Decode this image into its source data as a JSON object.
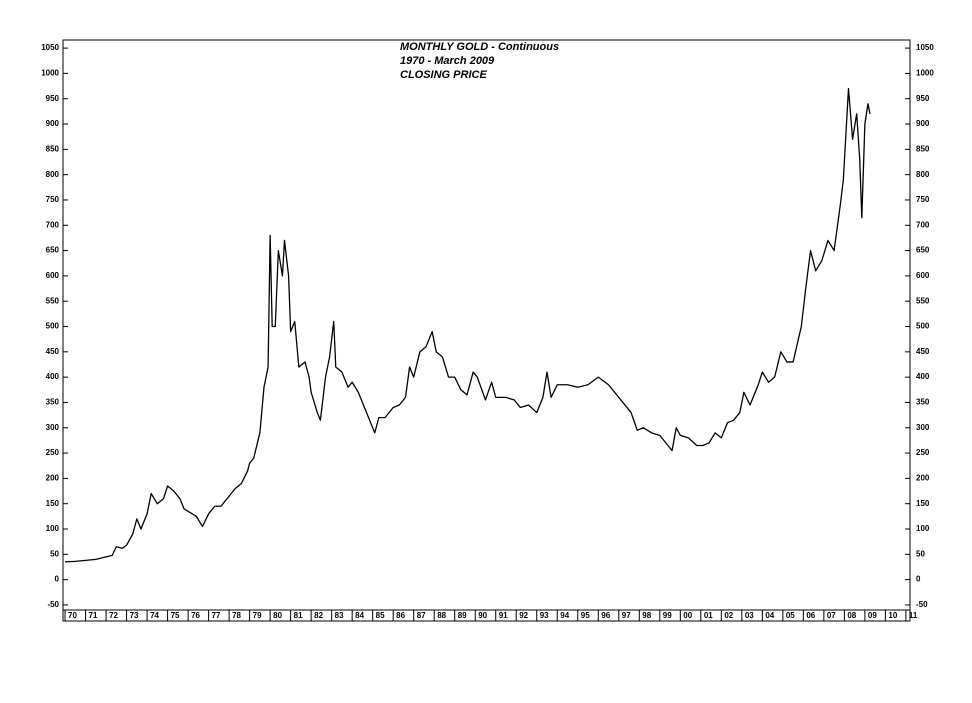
{
  "chart_data": {
    "type": "line",
    "title_lines": [
      "MONTHLY GOLD - Continuous",
      "1970 - March 2009",
      "CLOSING PRICE"
    ],
    "x": [
      1970,
      1970.5,
      1971,
      1971.5,
      1972,
      1972.3,
      1972.5,
      1972.8,
      1973,
      1973.3,
      1973.5,
      1973.7,
      1974,
      1974.2,
      1974.5,
      1974.8,
      1975,
      1975.3,
      1975.6,
      1975.8,
      1976,
      1976.4,
      1976.7,
      1977,
      1977.3,
      1977.6,
      1978,
      1978.3,
      1978.6,
      1978.9,
      1979,
      1979.2,
      1979.5,
      1979.7,
      1979.9,
      1980,
      1980.1,
      1980.25,
      1980.4,
      1980.6,
      1980.7,
      1980.9,
      1981,
      1981.2,
      1981.4,
      1981.7,
      1981.9,
      1982,
      1982.3,
      1982.45,
      1982.7,
      1982.9,
      1983.1,
      1983.2,
      1983.5,
      1983.8,
      1984,
      1984.3,
      1984.6,
      1984.9,
      1985.1,
      1985.3,
      1985.6,
      1986,
      1986.3,
      1986.6,
      1986.8,
      1987,
      1987.3,
      1987.6,
      1987.9,
      1988.1,
      1988.4,
      1988.7,
      1989,
      1989.3,
      1989.6,
      1989.9,
      1990.1,
      1990.5,
      1990.8,
      1991,
      1991.5,
      1991.9,
      1992.2,
      1992.6,
      1993,
      1993.3,
      1993.5,
      1993.7,
      1994,
      1994.5,
      1995,
      1995.5,
      1996,
      1996.5,
      1996.9,
      1997.2,
      1997.6,
      1997.9,
      1998.2,
      1998.6,
      1999,
      1999.4,
      1999.6,
      1999.8,
      2000,
      2000.4,
      2000.8,
      2001.1,
      2001.4,
      2001.7,
      2002,
      2002.3,
      2002.6,
      2002.9,
      2003.1,
      2003.4,
      2003.8,
      2004,
      2004.3,
      2004.6,
      2004.9,
      2005.2,
      2005.5,
      2005.9,
      2006.1,
      2006.35,
      2006.6,
      2006.9,
      2007.2,
      2007.5,
      2007.8,
      2007.95,
      2008.2,
      2008.4,
      2008.6,
      2008.75,
      2008.85,
      2009,
      2009.15,
      2009.25
    ],
    "values": [
      35,
      36,
      38,
      40,
      45,
      48,
      65,
      62,
      68,
      90,
      120,
      100,
      130,
      170,
      150,
      160,
      185,
      175,
      160,
      140,
      135,
      125,
      105,
      130,
      145,
      145,
      165,
      180,
      190,
      215,
      230,
      240,
      290,
      380,
      420,
      680,
      500,
      500,
      650,
      600,
      670,
      600,
      490,
      510,
      420,
      430,
      400,
      370,
      330,
      315,
      400,
      440,
      510,
      420,
      410,
      380,
      390,
      370,
      340,
      310,
      290,
      320,
      320,
      340,
      345,
      360,
      420,
      400,
      450,
      460,
      490,
      450,
      440,
      400,
      400,
      375,
      365,
      410,
      400,
      355,
      390,
      360,
      360,
      355,
      340,
      345,
      330,
      360,
      410,
      360,
      385,
      385,
      380,
      385,
      400,
      385,
      365,
      350,
      330,
      295,
      300,
      290,
      285,
      265,
      255,
      300,
      285,
      280,
      265,
      265,
      270,
      290,
      280,
      310,
      315,
      330,
      370,
      345,
      385,
      410,
      390,
      400,
      450,
      430,
      430,
      500,
      570,
      650,
      610,
      630,
      670,
      650,
      740,
      790,
      970,
      870,
      920,
      830,
      715,
      900,
      940,
      920
    ],
    "color": "#000000",
    "xlim": [
      1969.9,
      2011.2
    ],
    "xticks": [
      {
        "value": 1970,
        "label": "70"
      },
      {
        "value": 1971,
        "label": "71"
      },
      {
        "value": 1972,
        "label": "72"
      },
      {
        "value": 1973,
        "label": "73"
      },
      {
        "value": 1974,
        "label": "74"
      },
      {
        "value": 1975,
        "label": "75"
      },
      {
        "value": 1976,
        "label": "76"
      },
      {
        "value": 1977,
        "label": "77"
      },
      {
        "value": 1978,
        "label": "78"
      },
      {
        "value": 1979,
        "label": "79"
      },
      {
        "value": 1980,
        "label": "80"
      },
      {
        "value": 1981,
        "label": "81"
      },
      {
        "value": 1982,
        "label": "82"
      },
      {
        "value": 1983,
        "label": "83"
      },
      {
        "value": 1984,
        "label": "84"
      },
      {
        "value": 1985,
        "label": "85"
      },
      {
        "value": 1986,
        "label": "86"
      },
      {
        "value": 1987,
        "label": "87"
      },
      {
        "value": 1988,
        "label": "88"
      },
      {
        "value": 1989,
        "label": "89"
      },
      {
        "value": 1990,
        "label": "90"
      },
      {
        "value": 1991,
        "label": "91"
      },
      {
        "value": 1992,
        "label": "92"
      },
      {
        "value": 1993,
        "label": "93"
      },
      {
        "value": 1994,
        "label": "94"
      },
      {
        "value": 1995,
        "label": "95"
      },
      {
        "value": 1996,
        "label": "96"
      },
      {
        "value": 1997,
        "label": "97"
      },
      {
        "value": 1998,
        "label": "98"
      },
      {
        "value": 1999,
        "label": "99"
      },
      {
        "value": 2000,
        "label": "00"
      },
      {
        "value": 2001,
        "label": "01"
      },
      {
        "value": 2002,
        "label": "02"
      },
      {
        "value": 2003,
        "label": "03"
      },
      {
        "value": 2004,
        "label": "04"
      },
      {
        "value": 2005,
        "label": "05"
      },
      {
        "value": 2006,
        "label": "06"
      },
      {
        "value": 2007,
        "label": "07"
      },
      {
        "value": 2008,
        "label": "08"
      },
      {
        "value": 2009,
        "label": "09"
      },
      {
        "value": 2010,
        "label": "10"
      },
      {
        "value": 2011,
        "label": "11"
      }
    ],
    "ylim": [
      -60,
      1066
    ],
    "yticks": [
      -50,
      0,
      50,
      100,
      150,
      200,
      250,
      300,
      350,
      400,
      450,
      500,
      550,
      600,
      650,
      700,
      750,
      800,
      850,
      900,
      950,
      1000,
      1050
    ],
    "grid": false
  }
}
